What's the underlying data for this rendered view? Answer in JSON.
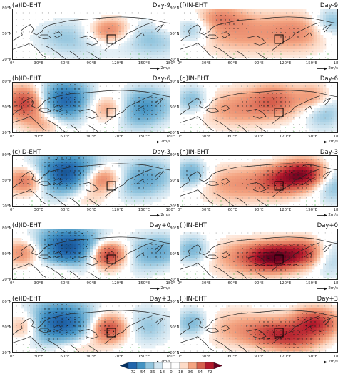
{
  "figure": {
    "panels": [
      {
        "id": "a",
        "title": "(a)ID-EHT",
        "day": "Day-9",
        "col": 0,
        "row": 0,
        "field": [
          [
            0.55,
            0.45,
            0.22,
            0.7,
            0.6
          ],
          [
            0.28,
            0.55,
            -0.15,
            0.9,
            0.7
          ],
          [
            0.62,
            0.42,
            0.2,
            0.6,
            0.5
          ],
          [
            0.47,
            0.58,
            -0.18,
            1.1,
            0.9
          ],
          [
            0.88,
            0.52,
            -0.3,
            1.1,
            0.9
          ],
          [
            0.7,
            0.35,
            0.15,
            0.8,
            0.6
          ],
          [
            0.97,
            0.3,
            0.2,
            0.6,
            0.6
          ]
        ]
      },
      {
        "id": "b",
        "title": "(b)ID-EHT",
        "day": "Day-6",
        "col": 0,
        "row": 1,
        "field": [
          [
            0.08,
            0.4,
            0.65,
            0.7,
            0.7
          ],
          [
            0.33,
            0.35,
            -0.75,
            0.9,
            0.85
          ],
          [
            0.6,
            0.5,
            0.35,
            0.8,
            0.6
          ],
          [
            0.75,
            0.6,
            -0.2,
            0.8,
            0.8
          ],
          [
            0.85,
            0.45,
            -0.4,
            0.9,
            0.8
          ],
          [
            0.2,
            0.8,
            0.25,
            0.7,
            0.5
          ]
        ]
      },
      {
        "id": "c",
        "title": "(c)ID-EHT",
        "day": "Day-3",
        "col": 0,
        "row": 2,
        "field": [
          [
            0.09,
            0.48,
            0.55,
            0.7,
            0.6
          ],
          [
            0.35,
            0.35,
            -0.9,
            1.2,
            0.9
          ],
          [
            0.55,
            0.45,
            0.7,
            0.8,
            0.6
          ],
          [
            0.72,
            0.55,
            -0.2,
            0.8,
            0.7
          ],
          [
            0.86,
            0.4,
            -0.35,
            0.9,
            0.8
          ],
          [
            0.45,
            0.8,
            0.2,
            0.8,
            0.5
          ]
        ]
      },
      {
        "id": "d",
        "title": "(d)ID-EHT",
        "day": "Day+0",
        "col": 0,
        "row": 3,
        "field": [
          [
            0.08,
            0.45,
            0.45,
            0.7,
            0.6
          ],
          [
            0.35,
            0.35,
            -0.85,
            1.2,
            0.9
          ],
          [
            0.6,
            0.5,
            0.8,
            0.7,
            0.6
          ],
          [
            0.8,
            0.5,
            -0.25,
            0.8,
            0.8
          ],
          [
            0.95,
            0.4,
            -0.3,
            0.7,
            0.7
          ],
          [
            0.3,
            0.8,
            0.2,
            0.7,
            0.5
          ]
        ]
      },
      {
        "id": "e",
        "title": "(e)ID-EHT",
        "day": "Day+3",
        "col": 0,
        "row": 4,
        "field": [
          [
            0.08,
            0.45,
            0.4,
            0.6,
            0.6
          ],
          [
            0.3,
            0.4,
            -0.8,
            1.2,
            0.9
          ],
          [
            0.6,
            0.5,
            0.65,
            0.7,
            0.6
          ],
          [
            0.85,
            0.45,
            -0.25,
            0.8,
            0.8
          ],
          [
            0.4,
            0.85,
            0.2,
            0.9,
            0.5
          ]
        ]
      },
      {
        "id": "f",
        "title": "(f)IN-EHT",
        "day": "Day-9",
        "col": 1,
        "row": 0,
        "field": [
          [
            0.08,
            0.4,
            -0.3,
            0.6,
            0.6
          ],
          [
            0.4,
            0.45,
            0.3,
            1.8,
            0.9
          ],
          [
            0.75,
            0.45,
            0.25,
            1.0,
            0.8
          ],
          [
            0.95,
            0.25,
            -0.3,
            0.6,
            0.6
          ],
          [
            0.25,
            0.15,
            0.25,
            0.8,
            0.5
          ]
        ]
      },
      {
        "id": "g",
        "title": "(g)IN-EHT",
        "day": "Day-6",
        "col": 1,
        "row": 1,
        "field": [
          [
            0.08,
            0.35,
            -0.35,
            0.6,
            0.6
          ],
          [
            0.35,
            0.5,
            0.3,
            1.4,
            0.8
          ],
          [
            0.6,
            0.35,
            0.4,
            0.9,
            0.7
          ],
          [
            0.9,
            0.55,
            -0.3,
            0.7,
            0.8
          ],
          [
            0.85,
            0.3,
            0.35,
            0.6,
            0.6
          ]
        ]
      },
      {
        "id": "h",
        "title": "(h)IN-EHT",
        "day": "Day-3",
        "col": 1,
        "row": 2,
        "field": [
          [
            0.07,
            0.35,
            -0.4,
            0.6,
            0.6
          ],
          [
            0.35,
            0.55,
            0.3,
            1.3,
            0.8
          ],
          [
            0.62,
            0.5,
            0.5,
            0.8,
            0.6
          ],
          [
            0.78,
            0.35,
            0.8,
            0.8,
            0.6
          ],
          [
            0.96,
            0.55,
            -0.3,
            0.6,
            0.8
          ]
        ]
      },
      {
        "id": "i",
        "title": "(i)IN-EHT",
        "day": "Day+0",
        "col": 1,
        "row": 3,
        "field": [
          [
            0.08,
            0.4,
            -0.35,
            0.6,
            0.6
          ],
          [
            0.35,
            0.55,
            0.25,
            1.1,
            0.8
          ],
          [
            0.58,
            0.55,
            0.9,
            0.9,
            0.6
          ],
          [
            0.78,
            0.45,
            0.55,
            0.8,
            0.6
          ],
          [
            0.94,
            0.55,
            -0.25,
            0.6,
            0.8
          ]
        ]
      },
      {
        "id": "j",
        "title": "(j)IN-EHT",
        "day": "Day+3",
        "col": 1,
        "row": 4,
        "field": [
          [
            0.08,
            0.4,
            -0.35,
            0.6,
            0.6
          ],
          [
            0.35,
            0.5,
            0.25,
            1.2,
            0.8
          ],
          [
            0.6,
            0.6,
            0.55,
            0.9,
            0.6
          ],
          [
            0.85,
            0.4,
            0.7,
            0.8,
            0.6
          ],
          [
            0.75,
            0.75,
            0.3,
            0.8,
            0.5
          ]
        ]
      }
    ],
    "xticks": [
      "0°",
      "30°E",
      "60°E",
      "90°E",
      "120°E",
      "150°E",
      "180°"
    ],
    "yticks": [
      "80°N",
      "50°N",
      "20°N"
    ],
    "ref_label": "2m/s",
    "colorbar": {
      "colors": [
        "#053061",
        "#2166ac",
        "#4393c3",
        "#92c5de",
        "#d1e5f0",
        "#ffffff",
        "#ffffff",
        "#fddbc7",
        "#f4a582",
        "#d6604d",
        "#b2182b",
        "#67001f"
      ],
      "labels": [
        "-72",
        "-54",
        "-36",
        "-18",
        "0",
        "18",
        "36",
        "54",
        "72"
      ]
    }
  }
}
